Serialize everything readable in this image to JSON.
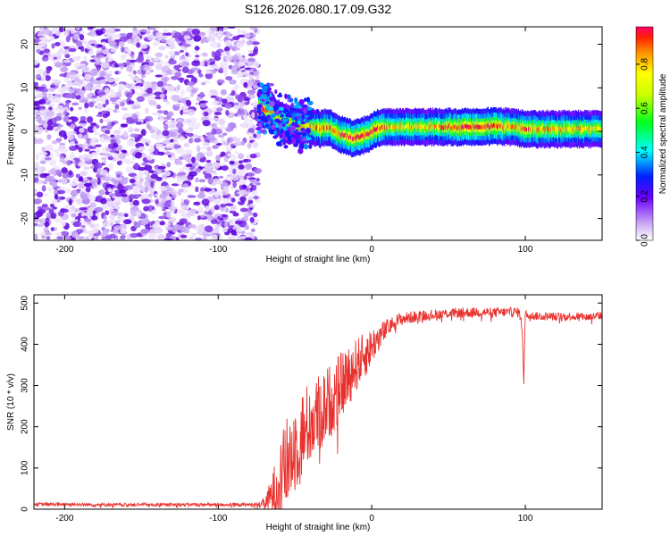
{
  "figure_title": "S126.2026.080.17.09.G32",
  "chart_data": [
    {
      "type": "heatmap",
      "title": "S126.2026.080.17.09.G32",
      "xlabel": "Height of straight line (km)",
      "ylabel": "Frequency (Hz)",
      "xlim": [
        -220,
        150
      ],
      "ylim": [
        -25,
        24
      ],
      "xticks": [
        -200,
        -100,
        0,
        100
      ],
      "yticks": [
        -20,
        -10,
        0,
        10,
        20
      ],
      "noise_region_x": [
        -220,
        -74
      ],
      "signal_track": {
        "x": [
          -74,
          -70,
          -66,
          -62,
          -58,
          -54,
          -50,
          -46,
          -42,
          -38,
          -34,
          -30,
          -26,
          -22,
          -18,
          -14,
          -10,
          -6,
          -2,
          2,
          6,
          10,
          20,
          40,
          60,
          80,
          90,
          100,
          120,
          150
        ],
        "freq": [
          5,
          5,
          5,
          3,
          2.5,
          2,
          1.5,
          1,
          1.5,
          1,
          0.5,
          1,
          0.5,
          -0.5,
          -1,
          -1.5,
          -1.5,
          -1,
          -0.5,
          0.5,
          1,
          1,
          1,
          1,
          1,
          1.2,
          1,
          0.5,
          0.5,
          0.5
        ],
        "amp": [
          0.9,
          0.95,
          0.7,
          0.5,
          0.45,
          0.5,
          0.55,
          0.6,
          0.65,
          0.6,
          0.7,
          0.75,
          0.7,
          0.85,
          0.8,
          0.85,
          0.95,
          0.9,
          0.85,
          0.9,
          0.75,
          0.6,
          0.55,
          0.6,
          0.9,
          0.85,
          0.6,
          0.75,
          0.6,
          0.55
        ]
      },
      "colorbar": {
        "label": "Normalized spectral amplitude",
        "range": [
          0,
          0.97
        ],
        "ticks": [
          "0.0",
          "0.2",
          "0.4",
          "0.6",
          "0.8"
        ]
      }
    },
    {
      "type": "line",
      "xlabel": "Height of straight line (km)",
      "ylabel": "SNR (10 * v/v)",
      "xlim": [
        -220,
        150
      ],
      "ylim": [
        0,
        520
      ],
      "xticks": [
        -200,
        -100,
        0,
        100
      ],
      "yticks": [
        0,
        100,
        200,
        300,
        400,
        500
      ],
      "series": [
        {
          "name": "SNR",
          "color": "#e8322e",
          "x": [
            -220,
            -200,
            -180,
            -160,
            -140,
            -120,
            -100,
            -80,
            -72,
            -68,
            -64,
            -60,
            -56,
            -52,
            -48,
            -44,
            -40,
            -36,
            -32,
            -28,
            -24,
            -20,
            -16,
            -12,
            -8,
            -4,
            0,
            4,
            8,
            12,
            16,
            20,
            30,
            40,
            50,
            60,
            70,
            80,
            90,
            96,
            98,
            99,
            100,
            102,
            110,
            120,
            130,
            140,
            150
          ],
          "y": [
            12,
            12,
            11,
            11,
            11,
            11,
            11,
            11,
            12,
            20,
            40,
            75,
            105,
            140,
            165,
            190,
            210,
            225,
            240,
            260,
            275,
            300,
            320,
            340,
            360,
            375,
            395,
            415,
            430,
            445,
            455,
            462,
            468,
            472,
            475,
            477,
            478,
            477,
            478,
            478,
            440,
            300,
            480,
            470,
            468,
            467,
            468,
            466,
            470
          ],
          "noise": [
            4,
            4,
            4,
            4,
            4,
            4,
            4,
            4,
            6,
            25,
            60,
            90,
            110,
            120,
            110,
            110,
            100,
            100,
            95,
            90,
            90,
            80,
            75,
            70,
            60,
            55,
            45,
            35,
            28,
            20,
            18,
            16,
            14,
            13,
            12,
            12,
            12,
            12,
            12,
            12,
            10,
            5,
            10,
            10,
            10,
            10,
            10,
            10,
            10
          ]
        }
      ]
    }
  ]
}
